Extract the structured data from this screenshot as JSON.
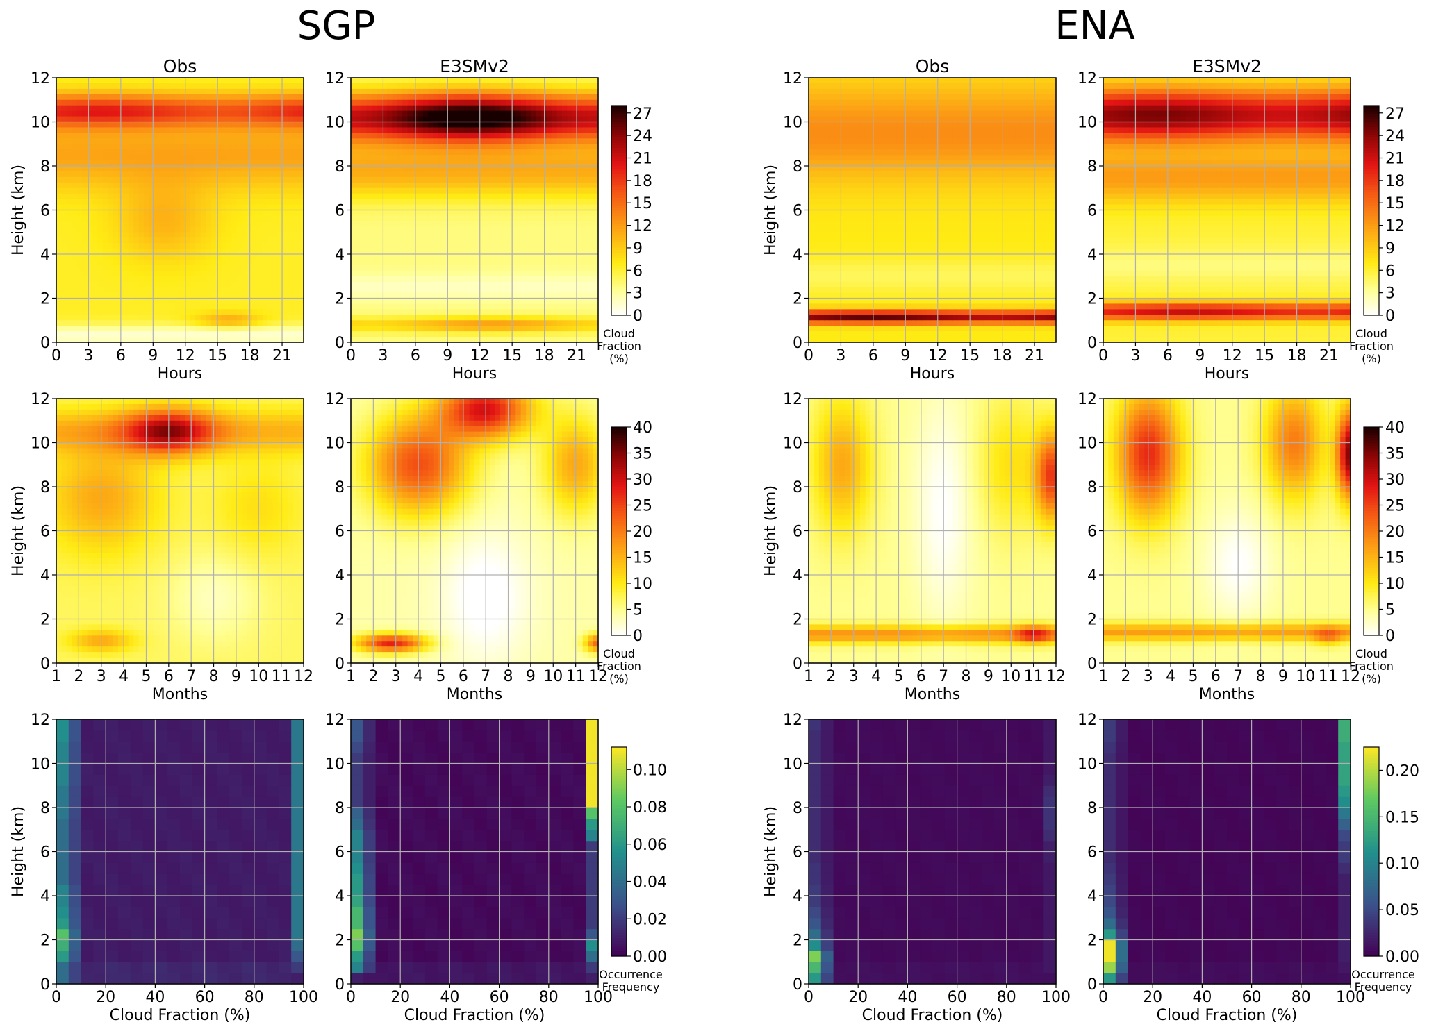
{
  "figure": {
    "sites": [
      "SGP",
      "ENA"
    ],
    "columns": [
      "Obs",
      "E3SMv2"
    ]
  },
  "chart_data": [
    {
      "row": "diurnal",
      "type": "heatmap",
      "xlabel": "Hours",
      "ylabel": "Height (km)",
      "xlim": [
        0,
        23
      ],
      "ylim": [
        0,
        12
      ],
      "xticks": [
        "0",
        "3",
        "6",
        "9",
        "12",
        "15",
        "18",
        "21"
      ],
      "xtick_values": [
        0,
        3,
        6,
        9,
        12,
        15,
        18,
        21
      ],
      "yticks": [
        "0",
        "2",
        "4",
        "6",
        "8",
        "10",
        "12"
      ],
      "colormap": "hot_r",
      "colorbar": {
        "ticks": [
          "0",
          "3",
          "6",
          "9",
          "12",
          "15",
          "18",
          "21",
          "24",
          "27"
        ],
        "max": 28,
        "label": [
          "Cloud",
          "Fraction",
          "(%)"
        ]
      },
      "panels": {
        "SGP": {
          "Obs": {
            "features": [
              {
                "type": "background",
                "value": 6.5
              },
              {
                "type": "band",
                "center": 10.5,
                "width": 0.75,
                "amp": 11,
                "mod": 0.15,
                "phase": 4
              },
              {
                "type": "band",
                "center": 8.5,
                "width": 1.6,
                "amp": 5
              },
              {
                "type": "blob",
                "x": 10,
                "h": 5.5,
                "sx": 4.5,
                "sy": 1.8,
                "amp": 4
              },
              {
                "type": "blob",
                "x": 16,
                "h": 1.0,
                "sx": 3,
                "sy": 0.35,
                "amp": 5
              },
              {
                "type": "band",
                "center": 0.3,
                "width": 0.5,
                "amp": -5
              }
            ]
          },
          "E3SMv2": {
            "features": [
              {
                "type": "background",
                "value": 4
              },
              {
                "type": "band",
                "center": 10.2,
                "width": 1.1,
                "amp": 22,
                "mod": 0.2,
                "phase": 11
              },
              {
                "type": "band",
                "center": 7.8,
                "width": 1.3,
                "amp": 7
              },
              {
                "type": "band",
                "center": 0.8,
                "width": 0.35,
                "amp": 6,
                "mod": 0.3,
                "phase": 13
              },
              {
                "type": "band",
                "center": 2.5,
                "width": 0.6,
                "amp": -2
              }
            ]
          }
        },
        "ENA": {
          "Obs": {
            "features": [
              {
                "type": "background",
                "value": 7
              },
              {
                "type": "band",
                "center": 9.5,
                "width": 2.2,
                "amp": 6
              },
              {
                "type": "band",
                "center": 1.15,
                "width": 0.3,
                "amp": 17,
                "mod": 0.1,
                "phase": 6
              },
              {
                "type": "band",
                "center": 3.0,
                "width": 0.8,
                "amp": -2
              }
            ]
          },
          "E3SMv2": {
            "features": [
              {
                "type": "background",
                "value": 6
              },
              {
                "type": "band",
                "center": 10.3,
                "width": 1.2,
                "amp": 17,
                "mod": 0.1,
                "phase": 5
              },
              {
                "type": "band",
                "center": 7.5,
                "width": 1.2,
                "amp": 6
              },
              {
                "type": "band",
                "center": 1.4,
                "width": 0.4,
                "amp": 14,
                "mod": 0.1,
                "phase": 8
              },
              {
                "type": "band",
                "center": 3.5,
                "width": 0.8,
                "amp": -2
              }
            ]
          }
        }
      }
    },
    {
      "row": "seasonal",
      "type": "heatmap",
      "xlabel": "Months",
      "ylabel": "Height (km)",
      "xlim": [
        1,
        12
      ],
      "ylim": [
        0,
        12
      ],
      "xticks": [
        "1",
        "2",
        "3",
        "4",
        "5",
        "6",
        "7",
        "8",
        "9",
        "10",
        "11",
        "12"
      ],
      "xtick_values": [
        1,
        2,
        3,
        4,
        5,
        6,
        7,
        8,
        9,
        10,
        11,
        12
      ],
      "yticks": [
        "0",
        "2",
        "4",
        "6",
        "8",
        "10",
        "12"
      ],
      "colormap": "hot_r",
      "colorbar": {
        "ticks": [
          "0",
          "5",
          "10",
          "15",
          "20",
          "25",
          "30",
          "35",
          "40"
        ],
        "max": 40,
        "label": [
          "Cloud",
          "Fraction",
          "(%)"
        ]
      },
      "panels": {
        "SGP": {
          "Obs": {
            "features": [
              {
                "type": "background",
                "value": 7
              },
              {
                "type": "blob",
                "x": 6,
                "h": 10.5,
                "sx": 2.0,
                "sy": 1.0,
                "amp": 20
              },
              {
                "type": "band",
                "center": 10.5,
                "width": 1.0,
                "amp": 8
              },
              {
                "type": "blob",
                "x": 3,
                "h": 7.5,
                "sx": 2.5,
                "sy": 2.5,
                "amp": 9
              },
              {
                "type": "blob",
                "x": 10,
                "h": 7,
                "sx": 2,
                "sy": 2.2,
                "amp": 4
              },
              {
                "type": "blob",
                "x": 3,
                "h": 1.0,
                "sx": 1.4,
                "sy": 0.5,
                "amp": 9
              },
              {
                "type": "blob",
                "x": 8,
                "h": 3,
                "sx": 2,
                "sy": 2,
                "amp": -4
              }
            ]
          },
          "E3SMv2": {
            "features": [
              {
                "type": "background",
                "value": 4
              },
              {
                "type": "blob",
                "x": 7,
                "h": 11.5,
                "sx": 2.0,
                "sy": 1.3,
                "amp": 25
              },
              {
                "type": "blob",
                "x": 4,
                "h": 9,
                "sx": 2.2,
                "sy": 2.2,
                "amp": 20
              },
              {
                "type": "blob",
                "x": 11,
                "h": 9,
                "sx": 1.4,
                "sy": 2.2,
                "amp": 12
              },
              {
                "type": "blob",
                "x": 2.8,
                "h": 0.9,
                "sx": 1.5,
                "sy": 0.4,
                "amp": 24
              },
              {
                "type": "blob",
                "x": 12,
                "h": 0.9,
                "sx": 0.6,
                "sy": 0.4,
                "amp": 18
              },
              {
                "type": "blob",
                "x": 7,
                "h": 3,
                "sx": 2,
                "sy": 3,
                "amp": -5
              }
            ]
          }
        },
        "ENA": {
          "Obs": {
            "features": [
              {
                "type": "background",
                "value": 5
              },
              {
                "type": "blob",
                "x": 2.5,
                "h": 9,
                "sx": 1.3,
                "sy": 3,
                "amp": 11
              },
              {
                "type": "blob",
                "x": 11.8,
                "h": 8.5,
                "sx": 0.7,
                "sy": 2,
                "amp": 20
              },
              {
                "type": "blob",
                "x": 10,
                "h": 9,
                "sx": 1.5,
                "sy": 3,
                "amp": 6
              },
              {
                "type": "band",
                "center": 1.3,
                "width": 0.4,
                "amp": 13
              },
              {
                "type": "blob",
                "x": 11,
                "h": 1.3,
                "sx": 0.8,
                "sy": 0.4,
                "amp": 12
              },
              {
                "type": "blob",
                "x": 7,
                "h": 7,
                "sx": 1.3,
                "sy": 5,
                "amp": -5
              }
            ]
          },
          "E3SMv2": {
            "features": [
              {
                "type": "background",
                "value": 5
              },
              {
                "type": "blob",
                "x": 3,
                "h": 9.5,
                "sx": 1.4,
                "sy": 2.8,
                "amp": 22
              },
              {
                "type": "blob",
                "x": 9.5,
                "h": 10,
                "sx": 1.3,
                "sy": 2.5,
                "amp": 15
              },
              {
                "type": "blob",
                "x": 12,
                "h": 9.5,
                "sx": 0.6,
                "sy": 2,
                "amp": 30
              },
              {
                "type": "band",
                "center": 1.4,
                "width": 0.4,
                "amp": 12
              },
              {
                "type": "blob",
                "x": 11,
                "h": 1.2,
                "sx": 0.6,
                "sy": 0.4,
                "amp": 8
              },
              {
                "type": "blob",
                "x": 7,
                "h": 4.5,
                "sx": 1.5,
                "sy": 2.5,
                "amp": -5
              }
            ]
          }
        }
      }
    },
    {
      "row": "histogram",
      "type": "heatmap",
      "xlabel": "Cloud Fraction (%)",
      "ylabel": "Height (km)",
      "xlim": [
        0,
        100
      ],
      "ylim": [
        0,
        12
      ],
      "xticks": [
        "0",
        "20",
        "40",
        "60",
        "80",
        "100"
      ],
      "xtick_values": [
        0,
        20,
        40,
        60,
        80,
        100
      ],
      "yticks": [
        "0",
        "2",
        "4",
        "6",
        "8",
        "10",
        "12"
      ],
      "colormap": "viridis",
      "bins": {
        "x": 20,
        "y": 24
      },
      "panels": {
        "SGP": {
          "colorbar": {
            "ticks": [
              "0.00",
              "0.02",
              "0.04",
              "0.06",
              "0.08",
              "0.10"
            ],
            "max": 0.112,
            "label": [
              "Occurrence",
              "Frequency"
            ]
          },
          "Obs": {
            "first_bin": [
              0.04,
              0.04,
              0.06,
              0.07,
              0.08,
              0.06,
              0.055,
              0.05,
              0.05,
              0.04,
              0.04,
              0.04,
              0.04,
              0.04,
              0.04,
              0.045,
              0.045,
              0.045,
              0.05,
              0.05,
              0.05,
              0.05,
              0.055,
              0.055
            ],
            "last_bin": [
              0.01,
              0.02,
              0.03,
              0.04,
              0.045,
              0.045,
              0.045,
              0.045,
              0.045,
              0.045,
              0.045,
              0.045,
              0.045,
              0.045,
              0.045,
              0.045,
              0.045,
              0.045,
              0.045,
              0.045,
              0.045,
              0.045,
              0.045,
              0.045
            ],
            "interior": 0.009
          },
          "E3SMv2": {
            "first_bin": [
              0.01,
              0.05,
              0.06,
              0.08,
              0.09,
              0.075,
              0.075,
              0.065,
              0.06,
              0.06,
              0.055,
              0.05,
              0.05,
              0.05,
              0.04,
              0.035,
              0.02,
              0.02,
              0.02,
              0.02,
              0.02,
              0.025,
              0.03,
              0.03
            ],
            "last_bin": [
              0.01,
              0.02,
              0.04,
              0.055,
              0.03,
              0.02,
              0.02,
              0.02,
              0.02,
              0.02,
              0.02,
              0.02,
              0.02,
              0.05,
              0.06,
              0.08,
              0.11,
              0.11,
              0.11,
              0.11,
              0.11,
              0.11,
              0.11,
              0.11
            ],
            "interior": 0.003
          }
        },
        "ENA": {
          "colorbar": {
            "ticks": [
              "0.00",
              "0.05",
              "0.10",
              "0.15",
              "0.20"
            ],
            "max": 0.225,
            "label": [
              "Occurrence",
              "Frequency"
            ]
          },
          "Obs": {
            "first_bin": [
              0.12,
              0.15,
              0.18,
              0.11,
              0.08,
              0.06,
              0.05,
              0.04,
              0.04,
              0.035,
              0.035,
              0.03,
              0.03,
              0.03,
              0.03,
              0.03,
              0.03,
              0.03,
              0.03,
              0.03,
              0.03,
              0.03,
              0.03,
              0.035
            ],
            "last_bin": [
              0.01,
              0.015,
              0.015,
              0.015,
              0.015,
              0.015,
              0.015,
              0.015,
              0.015,
              0.015,
              0.015,
              0.02,
              0.02,
              0.03,
              0.035,
              0.035,
              0.035,
              0.03,
              0.02,
              0.015,
              0.015,
              0.015,
              0.015,
              0.015
            ],
            "interior": 0.006
          },
          "E3SMv2": {
            "first_bin": [
              0.12,
              0.19,
              0.22,
              0.22,
              0.12,
              0.08,
              0.06,
              0.05,
              0.045,
              0.04,
              0.035,
              0.03,
              0.03,
              0.03,
              0.03,
              0.03,
              0.03,
              0.03,
              0.03,
              0.03,
              0.03,
              0.035,
              0.04,
              0.04
            ],
            "last_bin": [
              0.01,
              0.015,
              0.02,
              0.02,
              0.02,
              0.02,
              0.02,
              0.02,
              0.02,
              0.02,
              0.03,
              0.04,
              0.04,
              0.05,
              0.07,
              0.09,
              0.11,
              0.12,
              0.13,
              0.13,
              0.13,
              0.13,
              0.14,
              0.14
            ],
            "interior": 0.004
          }
        }
      }
    }
  ]
}
